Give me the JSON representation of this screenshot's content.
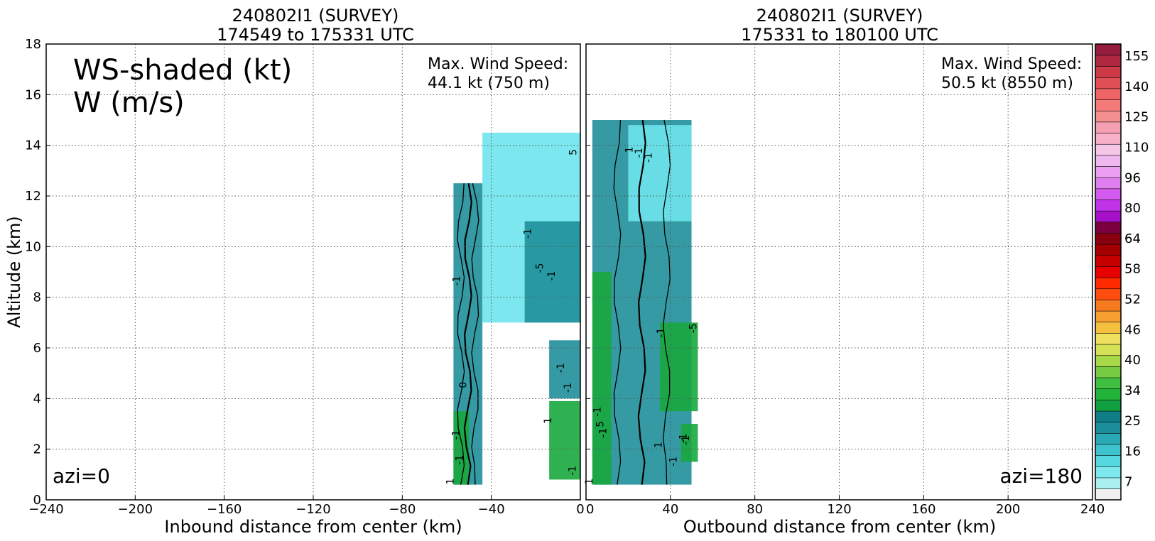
{
  "chart_data": [
    {
      "type": "heatmap",
      "title": "240802I1 (SURVEY)",
      "subtitle": "174549 to 175331 UTC",
      "xlabel": "Inbound distance from center (km)",
      "ylabel": "Altitude (km)",
      "xlim": [
        -240,
        0
      ],
      "ylim": [
        0,
        18
      ],
      "x_ticks": [
        "−240",
        "−200",
        "−160",
        "−120",
        "−80",
        "−40",
        "0"
      ],
      "y_ticks": [
        "0",
        "2",
        "4",
        "6",
        "8",
        "10",
        "12",
        "14",
        "16",
        "18"
      ],
      "grid": true,
      "overlay_title_line1": "WS-shaded (kt)",
      "overlay_title_line2": "W (m/s)",
      "max_wind_label": "Max. Wind Speed:",
      "max_wind_value": "44.1 kt (750 m)",
      "azimuth_label": "azi=0",
      "contour_labels": [
        "1",
        "-1",
        "-1",
        "-1",
        "-1",
        "-1",
        "-1",
        "-1",
        "5",
        "-5",
        "-1",
        "1",
        "0"
      ],
      "shaded_regions": [
        {
          "x": [
            -57,
            -44
          ],
          "y": [
            0.6,
            12.5
          ],
          "level": "teal"
        },
        {
          "x": [
            -57,
            -50
          ],
          "y": [
            0.6,
            3.5
          ],
          "level": "green"
        },
        {
          "x": [
            -44,
            0
          ],
          "y": [
            7.0,
            14.5
          ],
          "level": "cyan"
        },
        {
          "x": [
            -25,
            0
          ],
          "y": [
            7.0,
            11.0
          ],
          "level": "teal"
        },
        {
          "x": [
            -14,
            0
          ],
          "y": [
            4.0,
            6.3
          ],
          "level": "teal"
        },
        {
          "x": [
            -14,
            0
          ],
          "y": [
            0.8,
            3.9
          ],
          "level": "green"
        }
      ]
    },
    {
      "type": "heatmap",
      "title": "240802I1 (SURVEY)",
      "subtitle": "175331 to 180100 UTC",
      "xlabel": "Outbound distance from center (km)",
      "xlim": [
        0,
        240
      ],
      "ylim": [
        0,
        18
      ],
      "x_ticks": [
        "0",
        "40",
        "80",
        "120",
        "160",
        "200",
        "240"
      ],
      "grid": true,
      "max_wind_label": "Max. Wind Speed:",
      "max_wind_value": "50.5 kt (8550 m)",
      "azimuth_label": "azi=180",
      "contour_labels": [
        "1",
        "-1",
        "-1",
        "-1",
        "-1",
        "-1",
        "-1",
        "5",
        "-5",
        "-1",
        "1",
        "1",
        "-1"
      ],
      "shaded_regions": [
        {
          "x": [
            3,
            50
          ],
          "y": [
            0.6,
            15.0
          ],
          "level": "teal"
        },
        {
          "x": [
            20,
            50
          ],
          "y": [
            11.0,
            14.8
          ],
          "level": "cyan"
        },
        {
          "x": [
            3,
            12
          ],
          "y": [
            0.6,
            9.0
          ],
          "level": "green"
        },
        {
          "x": [
            35,
            53
          ],
          "y": [
            3.5,
            7.0
          ],
          "level": "green"
        },
        {
          "x": [
            45,
            53
          ],
          "y": [
            1.5,
            3.0
          ],
          "level": "green"
        }
      ]
    }
  ],
  "colorbar": {
    "tick_labels": [
      "7",
      "16",
      "25",
      "34",
      "40",
      "46",
      "52",
      "58",
      "64",
      "80",
      "96",
      "110",
      "125",
      "140",
      "155"
    ],
    "colors": [
      "#f0f0f0",
      "#aaf0f0",
      "#7ee8ef",
      "#55d8e0",
      "#3ec3cc",
      "#2aa8b4",
      "#1a8f99",
      "#0f7d86",
      "#10a040",
      "#22b33a",
      "#40c040",
      "#77cc44",
      "#a6d84a",
      "#d4e055",
      "#f0e060",
      "#f5c040",
      "#f5a030",
      "#f57a20",
      "#ff4d10",
      "#ff2a00",
      "#e60000",
      "#c80000",
      "#a50000",
      "#880010",
      "#7a0040",
      "#a510c8",
      "#c032e8",
      "#d55af0",
      "#e080f0",
      "#ea9ff0",
      "#f0b8ee",
      "#f5c6e6",
      "#f7b0c8",
      "#f5a0b2",
      "#f59090",
      "#f57b7b",
      "#ee6464",
      "#e04f55",
      "#cc3a4a",
      "#b02840",
      "#951c3c"
    ]
  },
  "colors": {
    "teal": "#1f8f99",
    "cyan": "#6ee4ec",
    "green": "#18a83e",
    "grid": "#555555"
  }
}
